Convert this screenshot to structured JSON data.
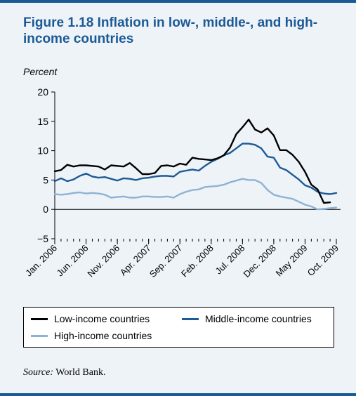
{
  "figure": {
    "title": "Figure 1.18  Inflation in low-, middle-, and high-income countries",
    "source_label": "Source:",
    "source_text": " World Bank."
  },
  "colors": {
    "frame_bg": "#eef3f8",
    "accent": "#1c5a96",
    "low": "#000000",
    "middle": "#1c5a96",
    "high": "#8fb2d3"
  },
  "chart_data": {
    "type": "line",
    "ylabel": "Percent",
    "ylim": [
      -5,
      20
    ],
    "yticks": [
      -5,
      0,
      5,
      10,
      15,
      20
    ],
    "grid": false,
    "legend_position": "bottom",
    "x_start": "Jan. 2006",
    "x_end": "Oct. 2009",
    "xtick_labels": [
      "Jan. 2006",
      "Jun. 2006",
      "Nov. 2006",
      "Apr. 2007",
      "Sep. 2007",
      "Feb. 2008",
      "Jul. 2008",
      "Dec. 2008",
      "May 2009",
      "Oct. 2009"
    ],
    "xtick_indices": [
      0,
      5,
      10,
      15,
      20,
      25,
      30,
      35,
      40,
      45
    ],
    "series": [
      {
        "name": "Low-income countries",
        "color": "#000000",
        "values": [
          6.5,
          6.7,
          7.6,
          7.3,
          7.5,
          7.5,
          7.4,
          7.3,
          6.8,
          7.5,
          7.4,
          7.3,
          7.9,
          7.0,
          6.0,
          6.0,
          6.2,
          7.4,
          7.5,
          7.3,
          7.8,
          7.6,
          8.8,
          8.6,
          8.5,
          8.4,
          8.7,
          9.2,
          10.5,
          12.8,
          14.0,
          15.3,
          13.6,
          13.1,
          13.8,
          12.6,
          10.1,
          10.1,
          9.3,
          8.1,
          6.4,
          4.2,
          3.4,
          1.1,
          1.2,
          null
        ]
      },
      {
        "name": "Middle-income countries",
        "color": "#1c5a96",
        "values": [
          4.8,
          5.3,
          4.8,
          5.1,
          5.7,
          6.1,
          5.6,
          5.4,
          5.5,
          5.2,
          4.9,
          5.3,
          5.2,
          5.0,
          5.3,
          5.4,
          5.6,
          5.7,
          5.7,
          5.6,
          6.4,
          6.6,
          6.8,
          6.6,
          7.4,
          8.1,
          8.6,
          9.2,
          9.6,
          10.4,
          11.2,
          11.2,
          11.0,
          10.4,
          9.0,
          8.8,
          7.1,
          6.7,
          5.9,
          5.1,
          4.1,
          3.7,
          3.0,
          2.7,
          2.6,
          2.8
        ]
      },
      {
        "name": "High-income countries",
        "color": "#8fb2d3",
        "values": [
          2.6,
          2.5,
          2.6,
          2.8,
          2.9,
          2.7,
          2.8,
          2.7,
          2.5,
          2.0,
          2.1,
          2.2,
          2.0,
          2.0,
          2.2,
          2.2,
          2.1,
          2.1,
          2.2,
          2.0,
          2.6,
          3.0,
          3.3,
          3.4,
          3.8,
          3.9,
          4.0,
          4.2,
          4.6,
          4.9,
          5.2,
          5.0,
          5.0,
          4.5,
          3.3,
          2.5,
          2.2,
          2.0,
          1.8,
          1.3,
          0.8,
          0.5,
          0.0,
          0.1,
          0.2,
          0.3
        ]
      }
    ]
  }
}
